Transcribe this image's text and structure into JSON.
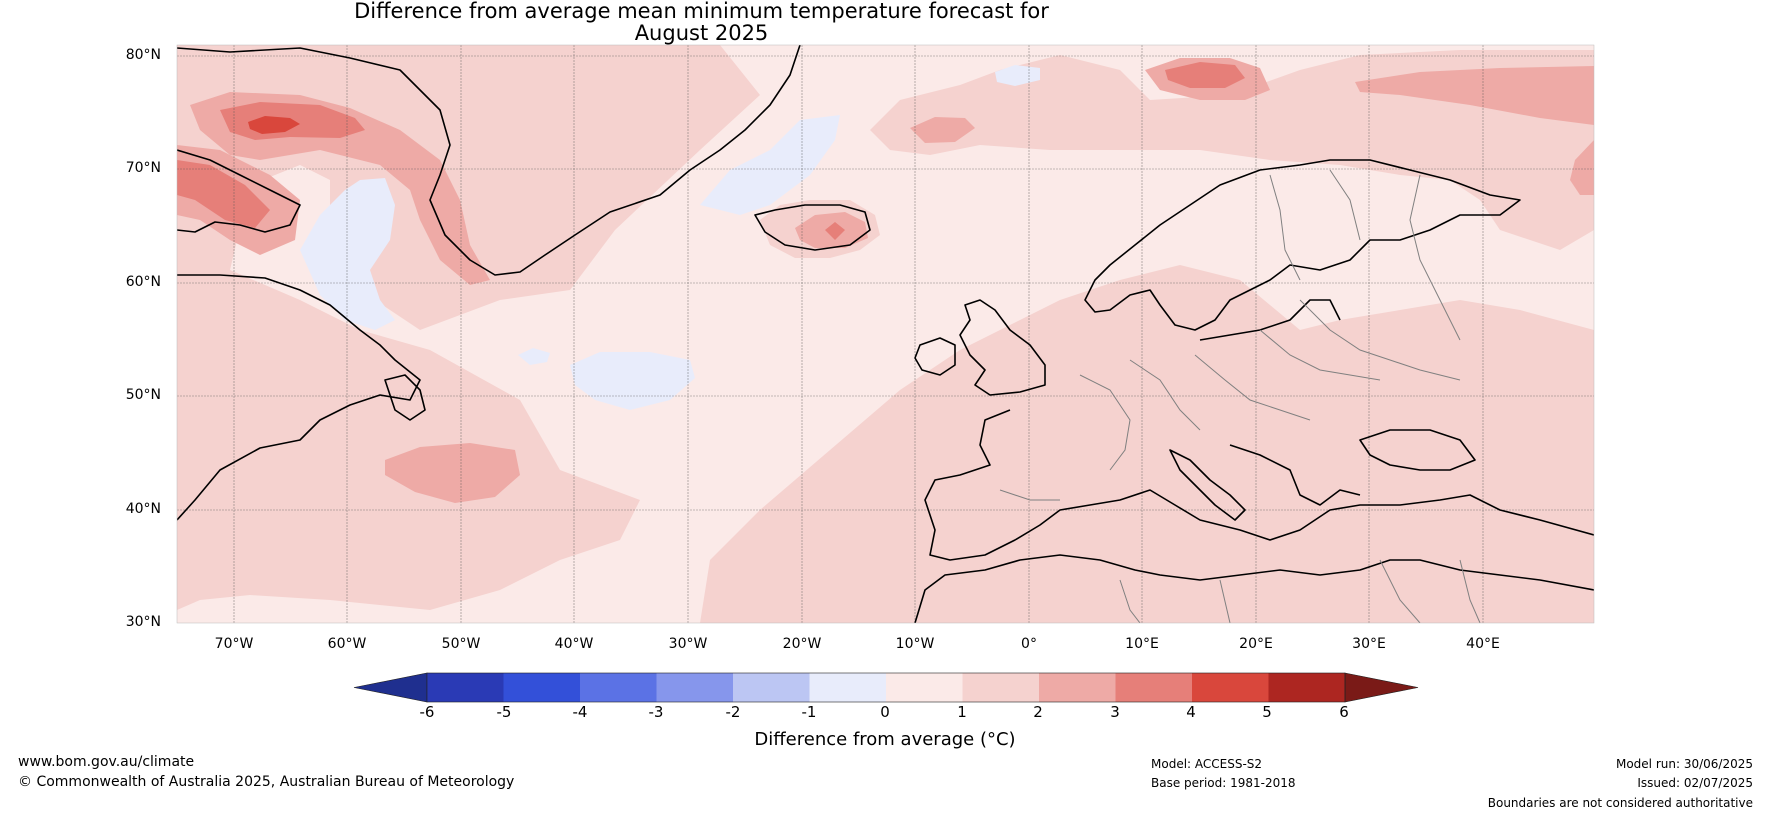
{
  "title": {
    "line1": "Difference from average mean minimum temperature forecast for",
    "line2": "August 2025"
  },
  "map": {
    "lat_labels": [
      "80°N",
      "70°N",
      "60°N",
      "50°N",
      "40°N",
      "30°N"
    ],
    "lon_labels": [
      "70°W",
      "60°W",
      "50°W",
      "40°W",
      "30°W",
      "20°W",
      "10°W",
      "0°",
      "10°E",
      "20°E",
      "30°E",
      "40°E"
    ],
    "colors": {
      "ocean_background": "#fbeae8",
      "warm_1_2": "#f5d2cf",
      "warm_2_3": "#eeaaa6",
      "warm_3_4": "#e67f79",
      "warm_4_5": "#d9473c",
      "cool_0_m1": "#e8ecfb",
      "coast": "#000000",
      "borders": "#777777"
    }
  },
  "colorbar": {
    "title": "Difference from average (°C)",
    "tick_labels": [
      "-6",
      "-5",
      "-4",
      "-3",
      "-2",
      "-1",
      "0",
      "1",
      "2",
      "3",
      "4",
      "5",
      "6"
    ],
    "segment_colors": [
      "#1f2f8f",
      "#2a3ab5",
      "#3350d9",
      "#5b72e5",
      "#8696ec",
      "#bcc6f3",
      "#e8ecfb",
      "#fbeae8",
      "#f5d2cf",
      "#eeaaa6",
      "#e67f79",
      "#d9473c",
      "#ad2621",
      "#7a1a17"
    ]
  },
  "footer": {
    "url": "www.bom.gov.au/climate",
    "copyright": "© Commonwealth of Australia 2025, Australian Bureau of Meteorology",
    "model": "Model: ACCESS-S2",
    "base_period": "Base period: 1981-2018",
    "model_run": "Model run: 30/06/2025",
    "issued": "Issued: 02/07/2025",
    "disclaimer": "Boundaries are not considered authoritative"
  }
}
